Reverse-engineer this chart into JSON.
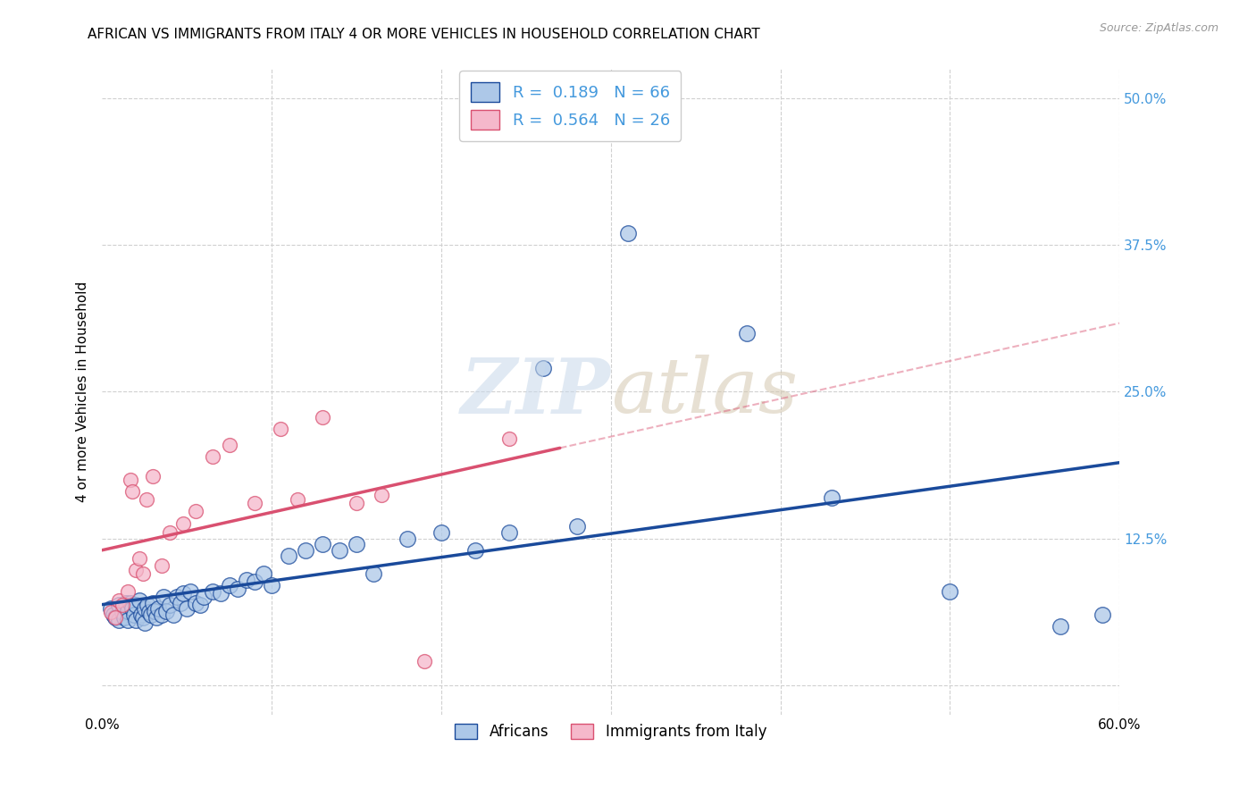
{
  "title": "AFRICAN VS IMMIGRANTS FROM ITALY 4 OR MORE VEHICLES IN HOUSEHOLD CORRELATION CHART",
  "source": "Source: ZipAtlas.com",
  "ylabel": "4 or more Vehicles in Household",
  "xlim": [
    0.0,
    0.6
  ],
  "ylim": [
    -0.025,
    0.525
  ],
  "yticks_right": [
    0.0,
    0.125,
    0.25,
    0.375,
    0.5
  ],
  "yticklabels_right": [
    "",
    "12.5%",
    "25.0%",
    "37.5%",
    "50.0%"
  ],
  "legend_label1": "Africans",
  "legend_label2": "Immigrants from Italy",
  "R1": "0.189",
  "N1": "66",
  "R2": "0.564",
  "N2": "26",
  "color_blue": "#adc8e8",
  "color_blue_line": "#1a4a9b",
  "color_pink": "#f5b8cb",
  "color_pink_line": "#d95070",
  "color_blue_text": "#4499dd",
  "background_color": "#ffffff",
  "grid_color": "#d0d0d0",
  "africans_x": [
    0.005,
    0.007,
    0.008,
    0.01,
    0.01,
    0.012,
    0.013,
    0.014,
    0.015,
    0.015,
    0.017,
    0.018,
    0.019,
    0.02,
    0.02,
    0.022,
    0.023,
    0.024,
    0.025,
    0.025,
    0.027,
    0.028,
    0.029,
    0.03,
    0.031,
    0.032,
    0.033,
    0.035,
    0.036,
    0.038,
    0.04,
    0.042,
    0.044,
    0.046,
    0.048,
    0.05,
    0.052,
    0.055,
    0.058,
    0.06,
    0.065,
    0.07,
    0.075,
    0.08,
    0.085,
    0.09,
    0.095,
    0.1,
    0.11,
    0.12,
    0.13,
    0.14,
    0.15,
    0.16,
    0.18,
    0.2,
    0.22,
    0.24,
    0.26,
    0.28,
    0.31,
    0.38,
    0.43,
    0.5,
    0.565,
    0.59
  ],
  "africans_y": [
    0.065,
    0.06,
    0.058,
    0.068,
    0.055,
    0.062,
    0.058,
    0.07,
    0.063,
    0.055,
    0.07,
    0.065,
    0.06,
    0.068,
    0.055,
    0.072,
    0.06,
    0.058,
    0.065,
    0.053,
    0.068,
    0.062,
    0.06,
    0.07,
    0.063,
    0.058,
    0.065,
    0.06,
    0.075,
    0.063,
    0.068,
    0.06,
    0.075,
    0.07,
    0.078,
    0.065,
    0.08,
    0.07,
    0.068,
    0.075,
    0.08,
    0.078,
    0.085,
    0.082,
    0.09,
    0.088,
    0.095,
    0.085,
    0.11,
    0.115,
    0.12,
    0.115,
    0.12,
    0.095,
    0.125,
    0.13,
    0.115,
    0.13,
    0.27,
    0.135,
    0.385,
    0.3,
    0.16,
    0.08,
    0.05,
    0.06
  ],
  "italy_x": [
    0.005,
    0.008,
    0.01,
    0.012,
    0.015,
    0.017,
    0.018,
    0.02,
    0.022,
    0.024,
    0.026,
    0.03,
    0.035,
    0.04,
    0.048,
    0.055,
    0.065,
    0.075,
    0.09,
    0.105,
    0.115,
    0.13,
    0.15,
    0.165,
    0.19,
    0.24
  ],
  "italy_y": [
    0.062,
    0.058,
    0.072,
    0.068,
    0.08,
    0.175,
    0.165,
    0.098,
    0.108,
    0.095,
    0.158,
    0.178,
    0.102,
    0.13,
    0.138,
    0.148,
    0.195,
    0.205,
    0.155,
    0.218,
    0.158,
    0.228,
    0.155,
    0.162,
    0.02,
    0.21
  ]
}
